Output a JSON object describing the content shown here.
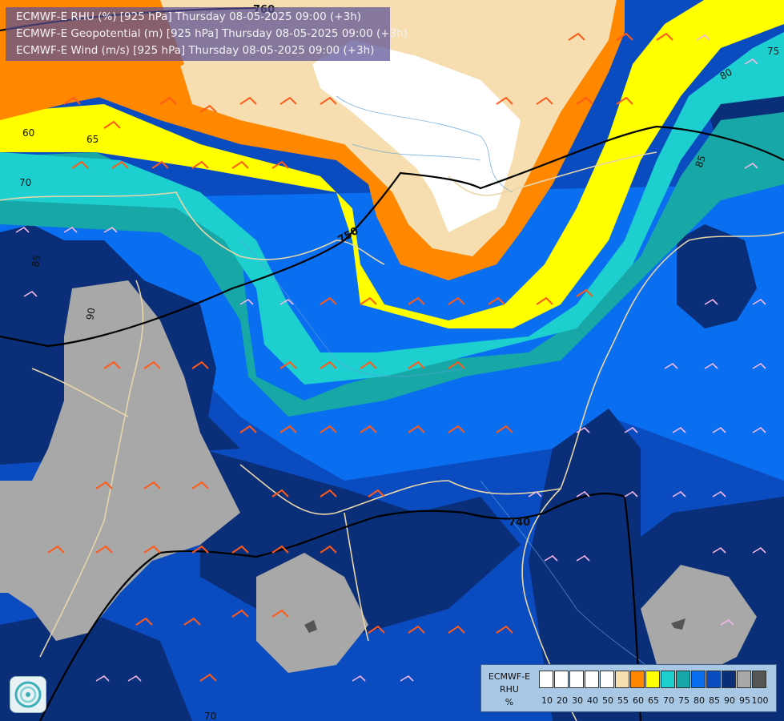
{
  "titles": {
    "line1": "ECMWF-E RHU (%) [925 hPa] Thursday 08-05-2025 09:00 (+3h)",
    "line2": "ECMWF-E Geopotential (m) [925 hPa] Thursday 08-05-2025 09:00 (+3h)",
    "line3": "ECMWF-E Wind (m/s) [925 hPa] Thursday 08-05-2025 09:00 (+3h)"
  },
  "contour_labels": {
    "geo_760": "760",
    "geo_750": "750",
    "geo_740": "740",
    "rh_60": "60",
    "rh_65": "65",
    "rh_70_left": "70",
    "rh_85": "85",
    "rh_90": "90",
    "rh_75_right": "75",
    "rh_80_right": "80",
    "rh_85_right": "85",
    "rh_70_bottom": "70"
  },
  "legend": {
    "line1": "ECMWF-E",
    "line2": "RHU",
    "line3": "%",
    "colors": [
      "#ffffff",
      "#ffffff",
      "#ffffff",
      "#ffffff",
      "#ffffff",
      "#f7deb0",
      "#ff8800",
      "#ffff00",
      "#1ecfcf",
      "#17a7a7",
      "#0a6ef0",
      "#0a4cc0",
      "#0a2e78",
      "#a8a8a8",
      "#555555"
    ],
    "ticks": [
      "10",
      "20",
      "30",
      "40",
      "50",
      "55",
      "60",
      "65",
      "70",
      "75",
      "80",
      "85",
      "90",
      "95",
      "100"
    ]
  },
  "colors": {
    "rh_50": "#ffffff",
    "rh_55": "#f7deb0",
    "rh_60": "#ff8800",
    "rh_65": "#ffff00",
    "rh_70": "#1ecfcf",
    "rh_75": "#17a7a7",
    "rh_80": "#0a6ef0",
    "rh_85": "#0a4cc0",
    "rh_90": "#0a2e78",
    "rh_95": "#a8a8a8",
    "rh_100": "#555555",
    "wind_strong": "#ff5a1a",
    "wind_weak": "#f5b8e6",
    "border": "#e8d6a8"
  },
  "logo_icon": "ecmwf-swirl-icon"
}
